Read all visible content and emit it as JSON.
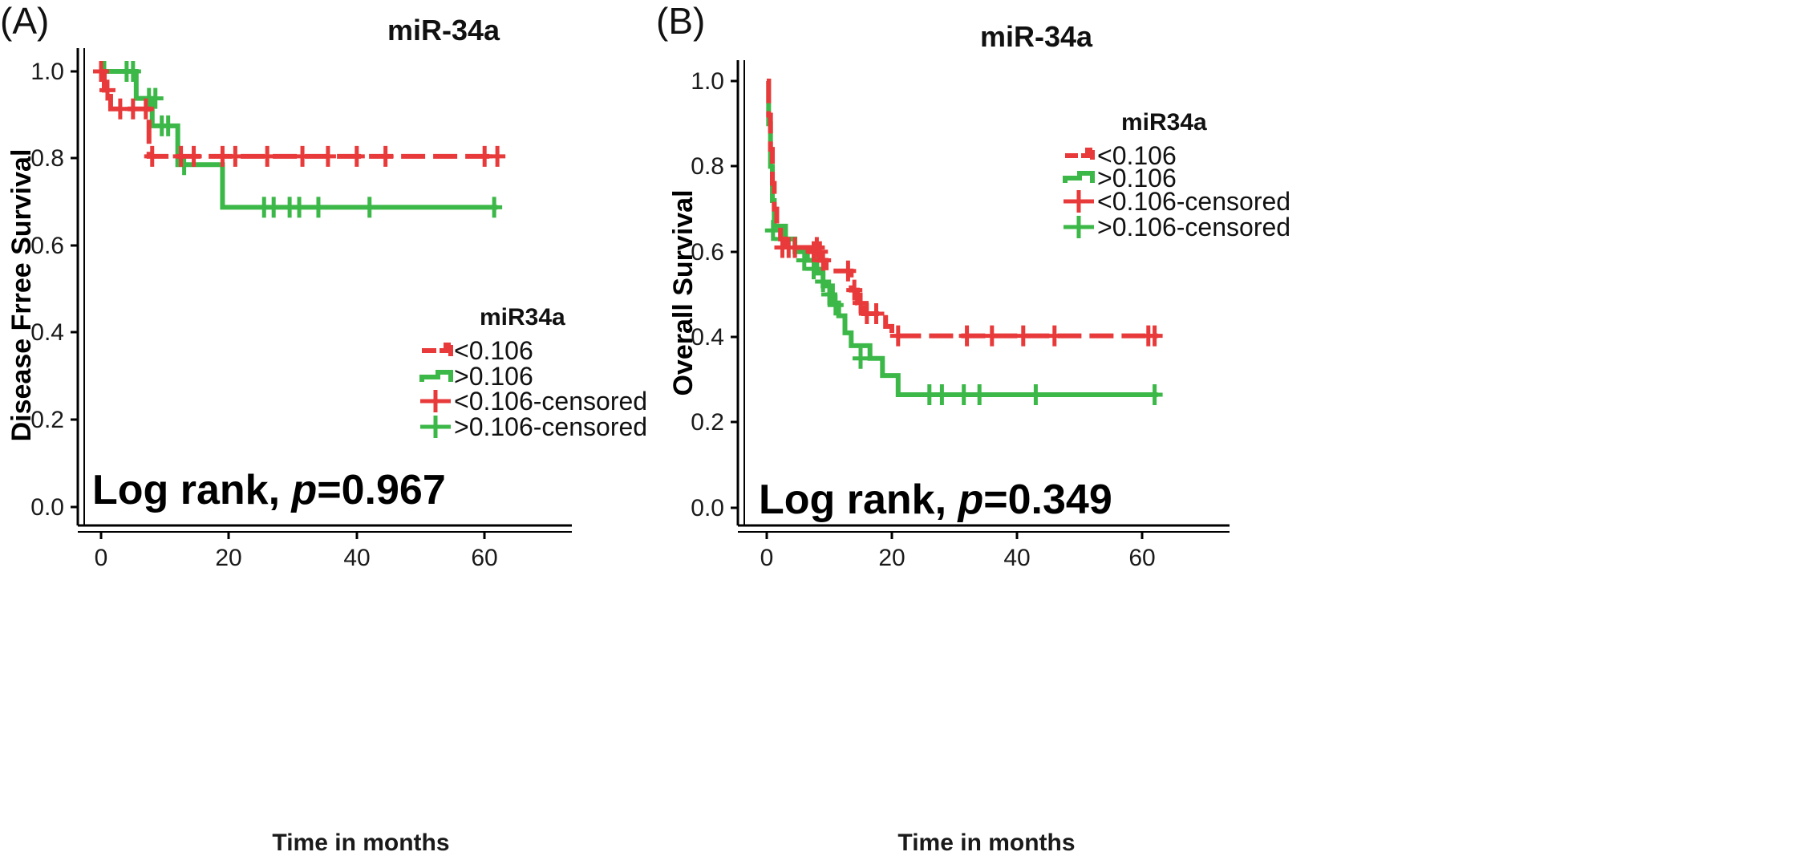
{
  "colors": {
    "low": "#e83a3a",
    "high": "#3cb848",
    "axis": "#000000"
  },
  "chart_data": [
    {
      "type": "line",
      "panel_label": "(A)",
      "title": "miR-34a",
      "xlabel": "Time in months",
      "ylabel": "Disease Frree Survival",
      "xlim": [
        -3,
        72
      ],
      "ylim": [
        0,
        1.05
      ],
      "xticks": [
        0,
        20,
        40,
        60
      ],
      "yticks": [
        "0.0",
        "0.2",
        "0.4",
        "0.6",
        "0.8",
        "1.0"
      ],
      "legend_title": "miR34a",
      "legend": [
        "<0.106",
        ">0.106",
        "<0.106-censored",
        ">0.106-censored"
      ],
      "annotation": {
        "prefix": "Log rank, ",
        "p": "p",
        "value": "=0.967"
      },
      "series": [
        {
          "name": "<0.106",
          "color_key": "low",
          "dashed": true,
          "steps": [
            [
              0,
              1.0
            ],
            [
              0.5,
              0.957
            ],
            [
              1.5,
              0.914
            ],
            [
              7.5,
              0.805
            ],
            [
              62,
              0.805
            ]
          ],
          "censored": [
            [
              0,
              1.0
            ],
            [
              1,
              0.957
            ],
            [
              3,
              0.914
            ],
            [
              5,
              0.914
            ],
            [
              7,
              0.914
            ],
            [
              8,
              0.805
            ],
            [
              12.5,
              0.805
            ],
            [
              14.5,
              0.805
            ],
            [
              19,
              0.805
            ],
            [
              21,
              0.805
            ],
            [
              26,
              0.805
            ],
            [
              31.5,
              0.805
            ],
            [
              35.5,
              0.805
            ],
            [
              40,
              0.805
            ],
            [
              44.5,
              0.805
            ],
            [
              60,
              0.805
            ],
            [
              62,
              0.805
            ]
          ]
        },
        {
          "name": ">0.106",
          "color_key": "high",
          "dashed": false,
          "steps": [
            [
              0,
              1.0
            ],
            [
              5.5,
              0.938
            ],
            [
              8,
              0.875
            ],
            [
              12,
              0.786
            ],
            [
              19,
              0.688
            ],
            [
              62,
              0.688
            ]
          ],
          "censored": [
            [
              0.5,
              1.0
            ],
            [
              4,
              1.0
            ],
            [
              5,
              1.0
            ],
            [
              7.5,
              0.938
            ],
            [
              8.5,
              0.938
            ],
            [
              9.5,
              0.875
            ],
            [
              10.5,
              0.875
            ],
            [
              13,
              0.786
            ],
            [
              25.5,
              0.688
            ],
            [
              27,
              0.688
            ],
            [
              29.5,
              0.688
            ],
            [
              31,
              0.688
            ],
            [
              34,
              0.688
            ],
            [
              42,
              0.688
            ],
            [
              61.5,
              0.688
            ]
          ]
        }
      ]
    },
    {
      "type": "line",
      "panel_label": "(B)",
      "title": "miR-34a",
      "xlabel": "Time in months",
      "ylabel": "Overall Survival",
      "xlim": [
        -3,
        72
      ],
      "ylim": [
        0,
        1.05
      ],
      "xticks": [
        0,
        20,
        40,
        60
      ],
      "yticks": [
        "0.0",
        "0.2",
        "0.4",
        "0.6",
        "0.8",
        "1.0"
      ],
      "legend_title": "miR34a",
      "legend": [
        "<0.106",
        ">0.106",
        "<0.106-censored",
        ">0.106-censored"
      ],
      "annotation": {
        "prefix": "Log rank, ",
        "p": "p",
        "value": "=0.349"
      },
      "series": [
        {
          "name": "<0.106",
          "color_key": "low",
          "dashed": true,
          "steps": [
            [
              0,
              1.0
            ],
            [
              0.3,
              0.92
            ],
            [
              0.6,
              0.84
            ],
            [
              0.9,
              0.76
            ],
            [
              1.2,
              0.7
            ],
            [
              1.6,
              0.66
            ],
            [
              2.2,
              0.63
            ],
            [
              3,
              0.61
            ],
            [
              7,
              0.6
            ],
            [
              8.5,
              0.58
            ],
            [
              9.5,
              0.555
            ],
            [
              13.5,
              0.51
            ],
            [
              14.5,
              0.48
            ],
            [
              15.5,
              0.455
            ],
            [
              19,
              0.425
            ],
            [
              20,
              0.403
            ],
            [
              62.5,
              0.403
            ]
          ],
          "censored": [
            [
              2.5,
              0.61
            ],
            [
              3.5,
              0.61
            ],
            [
              4.5,
              0.61
            ],
            [
              7.5,
              0.6
            ],
            [
              8,
              0.61
            ],
            [
              8.5,
              0.6
            ],
            [
              9,
              0.58
            ],
            [
              13,
              0.555
            ],
            [
              14,
              0.51
            ],
            [
              15,
              0.48
            ],
            [
              16,
              0.455
            ],
            [
              17.5,
              0.455
            ],
            [
              21,
              0.403
            ],
            [
              32,
              0.403
            ],
            [
              36,
              0.403
            ],
            [
              41,
              0.403
            ],
            [
              46,
              0.403
            ],
            [
              61,
              0.403
            ],
            [
              62,
              0.403
            ]
          ]
        },
        {
          "name": ">0.106",
          "color_key": "high",
          "dashed": false,
          "steps": [
            [
              0,
              1.0
            ],
            [
              0.3,
              0.9
            ],
            [
              0.6,
              0.8
            ],
            [
              0.9,
              0.72
            ],
            [
              1.2,
              0.66
            ],
            [
              3,
              0.63
            ],
            [
              4.5,
              0.6
            ],
            [
              6.5,
              0.58
            ],
            [
              8,
              0.55
            ],
            [
              9,
              0.52
            ],
            [
              10.5,
              0.48
            ],
            [
              11.5,
              0.45
            ],
            [
              12.5,
              0.41
            ],
            [
              13.5,
              0.38
            ],
            [
              16.5,
              0.35
            ],
            [
              18.5,
              0.31
            ],
            [
              21,
              0.265
            ],
            [
              62.5,
              0.265
            ]
          ],
          "censored": [
            [
              1,
              0.65
            ],
            [
              2.5,
              0.63
            ],
            [
              4.5,
              0.61
            ],
            [
              6,
              0.58
            ],
            [
              7.5,
              0.56
            ],
            [
              9,
              0.53
            ],
            [
              10,
              0.5
            ],
            [
              11,
              0.475
            ],
            [
              15,
              0.35
            ],
            [
              26,
              0.265
            ],
            [
              28,
              0.265
            ],
            [
              31.5,
              0.265
            ],
            [
              34,
              0.265
            ],
            [
              43,
              0.265
            ],
            [
              62,
              0.265
            ]
          ]
        }
      ]
    }
  ]
}
